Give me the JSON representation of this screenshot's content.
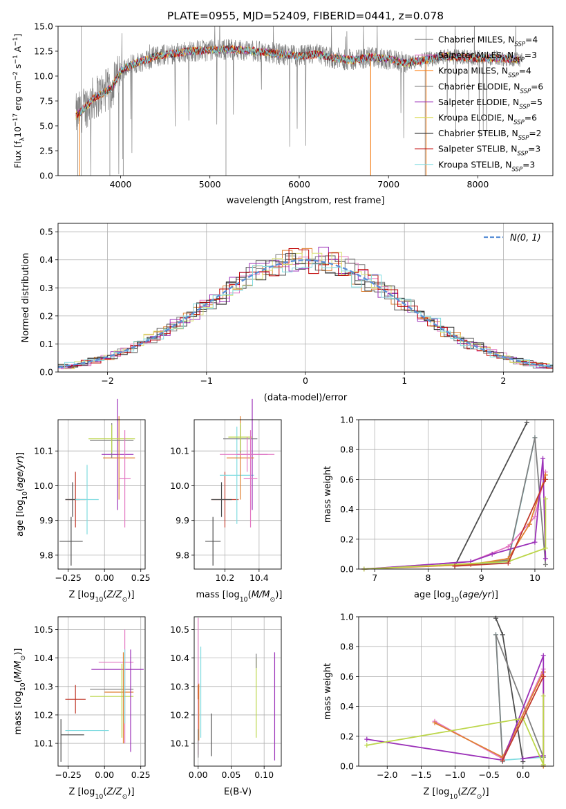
{
  "figure_title": "PLATE=0955, MJD=52409, FIBERID=0441, z=0.078",
  "chart_data": [
    {
      "id": "spectrum",
      "type": "line",
      "title": "PLATE=0955, MJD=52409, FIBERID=0441, z=0.078",
      "xlabel": "wavelength [Angstrom, rest frame]",
      "ylabel": "Flux [f_λ 10^-17 erg cm^-2 s^-1 A^-1]",
      "xlim": [
        3300,
        8840
      ],
      "ylim": [
        0,
        15
      ],
      "xticks": [
        4000,
        5000,
        6000,
        7000,
        8000
      ],
      "yticks": [
        "0.0",
        "2.5",
        "5.0",
        "7.5",
        "10.0",
        "12.5",
        "15.0"
      ],
      "legend": "upper-right",
      "grid": false,
      "observed_profile": {
        "x": [
          3500,
          3600,
          3700,
          3800,
          3900,
          4000,
          4100,
          4200,
          4400,
          4600,
          4800,
          5000,
          5200,
          5400,
          5600,
          5800,
          6000,
          6200,
          6400,
          6600,
          6800,
          7000,
          7200,
          7400,
          7600,
          7800,
          8000,
          8200,
          8400,
          8500
        ],
        "y": [
          6.0,
          6.8,
          7.8,
          8.3,
          8.8,
          10.5,
          11.0,
          11.4,
          12.0,
          12.3,
          12.5,
          12.6,
          12.7,
          12.6,
          12.4,
          12.2,
          12.0,
          12.2,
          11.8,
          11.6,
          11.9,
          11.7,
          11.3,
          11.6,
          12.0,
          11.9,
          11.8,
          11.8,
          11.7,
          11.6
        ]
      },
      "series": [
        {
          "name": "Chabrier MILES, N_SSP=4",
          "label_base": "Chabrier MILES, N",
          "label_sub": "SSP",
          "label_val": "=4",
          "color": "#7f7f7f"
        },
        {
          "name": "Salpeter MILES, N_SSP=3",
          "label_base": "Salpeter MILES, N",
          "label_sub": "SSP",
          "label_val": "=3",
          "color": "#e377c2"
        },
        {
          "name": "Kroupa MILES, N_SSP=4",
          "label_base": "Kroupa MILES, N",
          "label_sub": "SSP",
          "label_val": "=4",
          "color": "#ff7f0e"
        },
        {
          "name": "Chabrier ELODIE, N_SSP=6",
          "label_base": "Chabrier ELODIE, N",
          "label_sub": "SSP",
          "label_val": "=6",
          "color": "#7f7f7f"
        },
        {
          "name": "Salpeter ELODIE, N_SSP=5",
          "label_base": "Salpeter ELODIE, N",
          "label_sub": "SSP",
          "label_val": "=5",
          "color": "#9b30b8"
        },
        {
          "name": "Kroupa ELODIE, N_SSP=6",
          "label_base": "Kroupa ELODIE, N",
          "label_sub": "SSP",
          "label_val": "=6",
          "color": "#dbdb4d"
        },
        {
          "name": "Chabrier STELIB, N_SSP=2",
          "label_base": "Chabrier STELIB, N",
          "label_sub": "SSP",
          "label_val": "=2",
          "color": "#333333"
        },
        {
          "name": "Salpeter STELIB, N_SSP=3",
          "label_base": "Salpeter STELIB, N",
          "label_sub": "SSP",
          "label_val": "=3",
          "color": "#c00000"
        },
        {
          "name": "Kroupa STELIB, N_SSP=3",
          "label_base": "Kroupa STELIB, N",
          "label_sub": "SSP",
          "label_val": "=3",
          "color": "#7fdbe0"
        }
      ]
    },
    {
      "id": "residuals",
      "type": "line",
      "xlabel": "(data-model)/error",
      "ylabel": "Normed distribution",
      "xlim": [
        -2.5,
        2.5
      ],
      "ylim": [
        0,
        0.53
      ],
      "xticks": [
        -2,
        -1,
        0,
        1,
        2
      ],
      "xtick_labels": [
        "−2",
        "−1",
        "0",
        "1",
        "2"
      ],
      "yticks": [
        "0.0",
        "0.1",
        "0.2",
        "0.3",
        "0.4",
        "0.5"
      ],
      "grid": true,
      "legend": "upper-right",
      "gaussian_label": "N(0, 1)"
    },
    {
      "id": "age-vs-Z",
      "type": "scatter",
      "xlabel": "Z [log10(Z/Z☉)]",
      "ylabel": "age [log10(age/yr)]",
      "xlim": [
        -0.32,
        0.28
      ],
      "ylim": [
        9.76,
        10.19
      ],
      "xticks": [
        -0.25,
        0.0,
        0.25
      ],
      "xtick_labels": [
        "−0.25",
        "0.00",
        "0.25"
      ],
      "yticks": [
        9.8,
        9.9,
        10.0,
        10.1
      ],
      "ytick_labels": [
        "9.8",
        "9.9",
        "10.0",
        "10.1"
      ],
      "grid": true,
      "points": [
        {
          "x": -0.23,
          "xerr": 0.08,
          "y": 9.84,
          "yerr": 0.07,
          "color": "#4d4d4d"
        },
        {
          "x": -0.2,
          "xerr": 0.07,
          "y": 9.96,
          "yerr": 0.08,
          "color": "#c0392b"
        },
        {
          "x": -0.22,
          "xerr": 0.05,
          "y": 9.96,
          "yerr": 0.05,
          "color": "#4d4d4d"
        },
        {
          "x": -0.12,
          "xerr": 0.08,
          "y": 9.96,
          "yerr": 0.1,
          "color": "#7fdbe0"
        },
        {
          "x": 0.09,
          "xerr": 0.11,
          "y": 10.09,
          "yerr": 0.16,
          "color": "#9b30b8"
        },
        {
          "x": 0.1,
          "xerr": 0.11,
          "y": 10.08,
          "yerr": 0.12,
          "color": "#e08030"
        },
        {
          "x": 0.05,
          "xerr": 0.15,
          "y": 10.13,
          "yerr": 0.05,
          "color": "#7f7f7f"
        },
        {
          "x": 0.05,
          "xerr": 0.16,
          "y": 10.135,
          "yerr": 0.04,
          "color": "#bcd64a"
        },
        {
          "x": 0.14,
          "xerr": 0.04,
          "y": 10.02,
          "yerr": 0.14,
          "color": "#e377c2"
        }
      ]
    },
    {
      "id": "age-vs-mass",
      "type": "scatter",
      "xlabel": "mass [log10(M/M☉)]",
      "xlim": [
        10.02,
        10.53
      ],
      "ylim": [
        9.76,
        10.19
      ],
      "xticks": [
        10.2,
        10.4
      ],
      "xtick_labels": [
        "10.2",
        "10.4"
      ],
      "yticks": [
        9.8,
        9.9,
        10.0,
        10.1
      ],
      "ytick_labels": [
        "9.8",
        "9.9",
        "10.0",
        "10.1"
      ],
      "grid": true,
      "points": [
        {
          "x": 10.13,
          "xerr": 0.045,
          "y": 9.84,
          "yerr": 0.07,
          "color": "#4d4d4d"
        },
        {
          "x": 10.2,
          "xerr": 0.08,
          "y": 9.96,
          "yerr": 0.08,
          "color": "#c0392b"
        },
        {
          "x": 10.18,
          "xerr": 0.06,
          "y": 9.96,
          "yerr": 0.05,
          "color": "#4d4d4d"
        },
        {
          "x": 10.27,
          "xerr": 0.1,
          "y": 10.03,
          "yerr": 0.14,
          "color": "#7fdbe0"
        },
        {
          "x": 10.36,
          "xerr": 0.09,
          "y": 10.09,
          "yerr": 0.16,
          "color": "#9b30b8"
        },
        {
          "x": 10.29,
          "xerr": 0.08,
          "y": 10.08,
          "yerr": 0.12,
          "color": "#e08030"
        },
        {
          "x": 10.29,
          "xerr": 0.1,
          "y": 10.135,
          "yerr": 0.04,
          "color": "#7f7f7f"
        },
        {
          "x": 10.29,
          "xerr": 0.07,
          "y": 10.14,
          "yerr": 0.04,
          "color": "#bcd64a"
        },
        {
          "x": 10.35,
          "xerr": 0.04,
          "y": 10.02,
          "yerr": 0.14,
          "color": "#e377c2"
        },
        {
          "x": 10.33,
          "xerr": 0.16,
          "y": 10.09,
          "yerr": 0.05,
          "color": "#e377c2"
        }
      ]
    },
    {
      "id": "mass-weight-vs-age",
      "type": "line",
      "xlabel": "age  [log10(age/yr)]",
      "ylabel": "mass weight",
      "xlim": [
        6.7,
        10.35
      ],
      "ylim": [
        0,
        1.0
      ],
      "xticks": [
        7,
        8,
        9,
        10
      ],
      "xtick_labels": [
        "7",
        "8",
        "9",
        "10"
      ],
      "yticks": [
        "0.0",
        "0.2",
        "0.4",
        "0.6",
        "0.8",
        "1.0"
      ],
      "grid": true,
      "series": [
        {
          "color": "#4d4d4d",
          "x": [
            8.5,
            9.85
          ],
          "y": [
            0.02,
            0.98
          ]
        },
        {
          "color": "#7fdbe0",
          "x": [
            8.5,
            9.5,
            10.0
          ],
          "y": [
            0.02,
            0.05,
            0.88
          ]
        },
        {
          "color": "#7f7f7f",
          "x": [
            8.5,
            9.5,
            10.0,
            10.2
          ],
          "y": [
            0.02,
            0.06,
            0.88,
            0.03
          ]
        },
        {
          "color": "#e377c2",
          "x": [
            6.8,
            8.8,
            9.5,
            10.0,
            10.2
          ],
          "y": [
            0.0,
            0.05,
            0.15,
            0.35,
            0.65
          ]
        },
        {
          "color": "#e08030",
          "x": [
            6.8,
            8.8,
            9.5,
            9.9,
            10.2
          ],
          "y": [
            0.0,
            0.03,
            0.07,
            0.3,
            0.63
          ]
        },
        {
          "color": "#9b30b8",
          "x": [
            6.8,
            8.8,
            9.2,
            10.0,
            10.15,
            10.2
          ],
          "y": [
            0.0,
            0.05,
            0.1,
            0.18,
            0.74,
            0.07
          ]
        },
        {
          "color": "#bcd64a",
          "x": [
            6.8,
            9.5,
            10.2,
            10.2
          ],
          "y": [
            0.0,
            0.05,
            0.14,
            0.47
          ]
        },
        {
          "color": "#c0392b",
          "x": [
            8.5,
            9.5,
            10.2
          ],
          "y": [
            0.02,
            0.04,
            0.6
          ]
        }
      ]
    },
    {
      "id": "mass-vs-Z",
      "type": "scatter",
      "xlabel": "Z [log10(Z/Z☉)]",
      "ylabel": "mass [log10(M/M☉)]",
      "xlim": [
        -0.32,
        0.28
      ],
      "ylim": [
        10.02,
        10.545
      ],
      "xticks": [
        -0.25,
        0.0,
        0.25
      ],
      "xtick_labels": [
        "−0.25",
        "0.00",
        "0.25"
      ],
      "yticks": [
        10.1,
        10.2,
        10.3,
        10.4,
        10.5
      ],
      "ytick_labels": [
        "10.1",
        "10.2",
        "10.3",
        "10.4",
        "10.5"
      ],
      "grid": true,
      "points": [
        {
          "x": -0.3,
          "xerr": 0.0,
          "y": 10.11,
          "yerr": 0.075,
          "color": "#4d4d4d"
        },
        {
          "x": -0.22,
          "xerr": 0.08,
          "y": 10.13,
          "yerr": 0.0,
          "color": "#4d4d4d"
        },
        {
          "x": -0.2,
          "xerr": 0.07,
          "y": 10.255,
          "yerr": 0.05,
          "color": "#c0392b"
        },
        {
          "x": -0.12,
          "xerr": 0.15,
          "y": 10.145,
          "yerr": 0.0,
          "color": "#7fdbe0"
        },
        {
          "x": 0.09,
          "xerr": 0.18,
          "y": 10.36,
          "yerr": 0.0,
          "color": "#9b30b8"
        },
        {
          "x": 0.08,
          "xerr": 0.12,
          "y": 10.385,
          "yerr": 0.0,
          "color": "#e377c2"
        },
        {
          "x": 0.1,
          "xerr": 0.1,
          "y": 10.28,
          "yerr": 0.0,
          "color": "#e08030"
        },
        {
          "x": 0.05,
          "xerr": 0.15,
          "y": 10.29,
          "yerr": 0.0,
          "color": "#7f7f7f"
        },
        {
          "x": 0.05,
          "xerr": 0.15,
          "y": 10.265,
          "yerr": 0.0,
          "color": "#bcd64a"
        },
        {
          "x": 0.12,
          "xerr": 0.0,
          "y": 10.25,
          "yerr": 0.13,
          "color": "#bcd64a"
        },
        {
          "x": 0.13,
          "xerr": 0.0,
          "y": 10.26,
          "yerr": 0.16,
          "color": "#e08030"
        },
        {
          "x": 0.14,
          "xerr": 0.0,
          "y": 10.3,
          "yerr": 0.2,
          "color": "#e377c2"
        },
        {
          "x": 0.14,
          "xerr": 0.0,
          "y": 10.3,
          "yerr": 0.13,
          "color": "#7fdbe0"
        },
        {
          "x": 0.18,
          "xerr": 0.0,
          "y": 10.25,
          "yerr": 0.18,
          "color": "#9b30b8"
        }
      ]
    },
    {
      "id": "mass-vs-EBV",
      "type": "scatter",
      "xlabel": "E(B-V)",
      "xlim": [
        -0.006,
        0.126
      ],
      "ylim": [
        10.02,
        10.545
      ],
      "xticks": [
        0.0,
        0.05,
        0.1
      ],
      "xtick_labels": [
        "0.00",
        "0.05",
        "0.10"
      ],
      "yticks": [
        10.1,
        10.2,
        10.3,
        10.4,
        10.5
      ],
      "ytick_labels": [
        "10.1",
        "10.2",
        "10.3",
        "10.4",
        "10.5"
      ],
      "grid": true,
      "points": [
        {
          "x": 0.0,
          "xerr": 0.0,
          "y": 10.3,
          "yerr": 0.24,
          "color": "#e377c2"
        },
        {
          "x": 0.0,
          "xerr": 0.0,
          "y": 10.28,
          "yerr": 0.025,
          "color": "#c0392b"
        },
        {
          "x": 0.001,
          "xerr": 0.0,
          "y": 10.21,
          "yerr": 0.1,
          "color": "#e08030"
        },
        {
          "x": 0.004,
          "xerr": 0.0,
          "y": 10.28,
          "yerr": 0.16,
          "color": "#7fdbe0"
        },
        {
          "x": 0.0,
          "xerr": 0.0,
          "y": 10.1,
          "yerr": 0.05,
          "color": "#7f7f7f"
        },
        {
          "x": 0.02,
          "xerr": 0.0,
          "y": 10.13,
          "yerr": 0.075,
          "color": "#4d4d4d"
        },
        {
          "x": 0.088,
          "xerr": 0.0,
          "y": 10.26,
          "yerr": 0.14,
          "color": "#bcd64a"
        },
        {
          "x": 0.088,
          "xerr": 0.0,
          "y": 10.39,
          "yerr": 0.025,
          "color": "#7f7f7f"
        },
        {
          "x": 0.116,
          "xerr": 0.0,
          "y": 10.23,
          "yerr": 0.19,
          "color": "#9b30b8"
        }
      ]
    },
    {
      "id": "mass-weight-vs-Z",
      "type": "line",
      "xlabel": "Z [log10(Z/Z☉)]",
      "ylabel": "mass weight",
      "xlim": [
        -2.42,
        0.45
      ],
      "ylim": [
        0,
        1.0
      ],
      "xticks": [
        -2.0,
        -1.5,
        -1.0,
        -0.5,
        0.0
      ],
      "xtick_labels": [
        "−2.0",
        "−1.5",
        "−1.0",
        "−0.5",
        "0.0"
      ],
      "yticks": [
        "0.0",
        "0.2",
        "0.4",
        "0.6",
        "0.8",
        "1.0"
      ],
      "grid": true,
      "series": [
        {
          "color": "#4d4d4d",
          "x": [
            -0.4,
            -0.3,
            0.0
          ],
          "y": [
            0.99,
            0.88,
            0.03
          ]
        },
        {
          "color": "#7fdbe0",
          "x": [
            -0.4,
            -0.3,
            0.3,
            0.3
          ],
          "y": [
            0.88,
            0.04,
            0.06,
            0.0
          ]
        },
        {
          "color": "#7f7f7f",
          "x": [
            -0.3,
            -0.4,
            0.3
          ],
          "y": [
            0.03,
            0.88,
            0.06
          ]
        },
        {
          "color": "#e377c2",
          "x": [
            -1.3,
            -0.3,
            0.3,
            0.3
          ],
          "y": [
            0.3,
            0.05,
            0.65,
            0.0
          ]
        },
        {
          "color": "#e08030",
          "x": [
            -1.3,
            -0.3,
            0.3,
            0.3
          ],
          "y": [
            0.29,
            0.06,
            0.63,
            0.0
          ]
        },
        {
          "color": "#9b30b8",
          "x": [
            -2.3,
            -0.3,
            0.3,
            0.3,
            0.0
          ],
          "y": [
            0.18,
            0.04,
            0.74,
            0.07,
            0.05
          ]
        },
        {
          "color": "#bcd64a",
          "x": [
            -2.3,
            0.0,
            0.3,
            0.3
          ],
          "y": [
            0.14,
            0.32,
            0.01,
            0.47
          ]
        },
        {
          "color": "#c0392b",
          "x": [
            -0.3,
            0.3
          ],
          "y": [
            0.04,
            0.6
          ]
        }
      ]
    }
  ]
}
